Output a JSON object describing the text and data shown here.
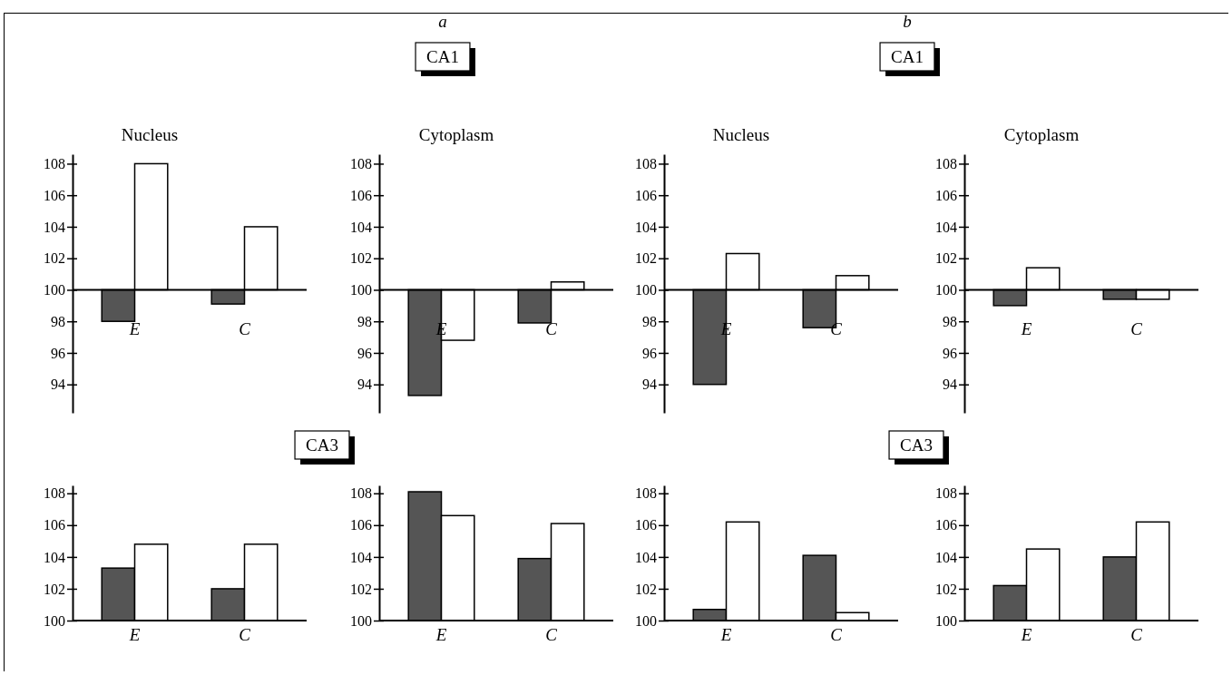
{
  "chart_data": [
    {
      "type": "bar",
      "title": "Nucleus",
      "categories": [
        "E",
        "C"
      ],
      "ylim": [
        92.2,
        108.6
      ],
      "yticks": [
        94,
        96,
        98,
        100,
        102,
        104,
        106,
        108
      ],
      "series": [
        {
          "color": "#555555",
          "base": [
            100,
            100
          ],
          "values": [
            -2,
            -0.9
          ]
        },
        {
          "color": "#ffffff",
          "base": [
            100,
            100
          ],
          "values": [
            8,
            4
          ]
        }
      ]
    },
    {
      "type": "bar",
      "title": "Cytoplasm",
      "annotations": [
        "a",
        "CA1"
      ],
      "categories": [
        "E",
        "C"
      ],
      "ylim": [
        92.2,
        108.6
      ],
      "yticks": [
        94,
        96,
        98,
        100,
        102,
        104,
        106,
        108
      ],
      "series": [
        {
          "color": "#555555",
          "base": [
            100,
            100
          ],
          "values": [
            -6.7,
            -2.1
          ]
        },
        {
          "color": "#ffffff",
          "base": [
            100,
            100
          ],
          "values": [
            -3.2,
            0.5
          ]
        }
      ]
    },
    {
      "type": "bar",
      "title": "Nucleus",
      "categories": [
        "E",
        "C"
      ],
      "ylim": [
        92.2,
        108.6
      ],
      "yticks": [
        94,
        96,
        98,
        100,
        102,
        104,
        106,
        108
      ],
      "series": [
        {
          "color": "#555555",
          "base": [
            100,
            100
          ],
          "values": [
            -6,
            -2.4
          ]
        },
        {
          "color": "#ffffff",
          "base": [
            100,
            100
          ],
          "values": [
            2.3,
            0.9
          ]
        }
      ]
    },
    {
      "type": "bar",
      "title": "Cytoplasm",
      "annotations": [
        "b",
        "CA1"
      ],
      "categories": [
        "E",
        "C"
      ],
      "ylim": [
        92.2,
        108.6
      ],
      "yticks": [
        94,
        96,
        98,
        100,
        102,
        104,
        106,
        108
      ],
      "series": [
        {
          "color": "#555555",
          "base": [
            100,
            100
          ],
          "values": [
            -1,
            -0.6
          ]
        },
        {
          "color": "#ffffff",
          "base": [
            100,
            100
          ],
          "values": [
            1.4,
            -0.6
          ]
        }
      ]
    },
    {
      "type": "bar",
      "categories": [
        "E",
        "C"
      ],
      "ylim": [
        100,
        108.5
      ],
      "yticks": [
        100,
        102,
        104,
        106,
        108
      ],
      "series": [
        {
          "color": "#555555",
          "base": [
            100,
            100
          ],
          "values": [
            3.3,
            2
          ]
        },
        {
          "color": "#ffffff",
          "base": [
            100,
            100
          ],
          "values": [
            4.8,
            4.8
          ]
        }
      ]
    },
    {
      "type": "bar",
      "annotations": [
        "CA3"
      ],
      "categories": [
        "E",
        "C"
      ],
      "ylim": [
        100,
        108.5
      ],
      "yticks": [
        100,
        102,
        104,
        106,
        108
      ],
      "series": [
        {
          "color": "#555555",
          "base": [
            100,
            100
          ],
          "values": [
            8.1,
            3.9
          ]
        },
        {
          "color": "#ffffff",
          "base": [
            100,
            100
          ],
          "values": [
            6.6,
            6.1
          ]
        }
      ]
    },
    {
      "type": "bar",
      "categories": [
        "E",
        "C"
      ],
      "ylim": [
        100,
        108.5
      ],
      "yticks": [
        100,
        102,
        104,
        106,
        108
      ],
      "series": [
        {
          "color": "#555555",
          "base": [
            100,
            100
          ],
          "values": [
            0.7,
            4.1
          ]
        },
        {
          "color": "#ffffff",
          "base": [
            100,
            100
          ],
          "values": [
            6.2,
            0.5
          ]
        }
      ]
    },
    {
      "type": "bar",
      "annotations": [
        "CA3"
      ],
      "categories": [
        "E",
        "C"
      ],
      "ylim": [
        100,
        108.5
      ],
      "yticks": [
        100,
        102,
        104,
        106,
        108
      ],
      "series": [
        {
          "color": "#555555",
          "base": [
            100,
            100
          ],
          "values": [
            2.2,
            4
          ]
        },
        {
          "color": "#ffffff",
          "base": [
            100,
            100
          ],
          "values": [
            4.5,
            6.2
          ]
        }
      ]
    }
  ]
}
